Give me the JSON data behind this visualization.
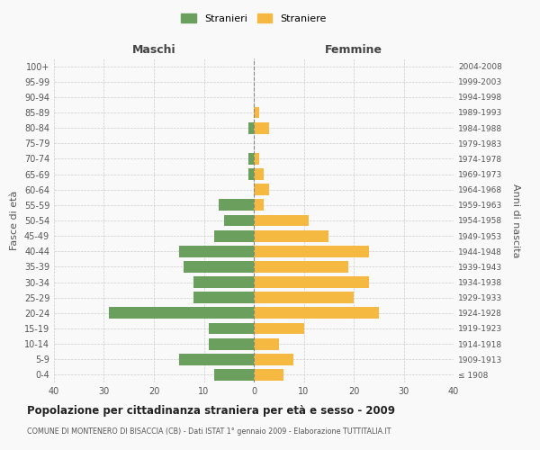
{
  "age_groups": [
    "100+",
    "95-99",
    "90-94",
    "85-89",
    "80-84",
    "75-79",
    "70-74",
    "65-69",
    "60-64",
    "55-59",
    "50-54",
    "45-49",
    "40-44",
    "35-39",
    "30-34",
    "25-29",
    "20-24",
    "15-19",
    "10-14",
    "5-9",
    "0-4"
  ],
  "birth_years": [
    "≤ 1908",
    "1909-1913",
    "1914-1918",
    "1919-1923",
    "1924-1928",
    "1929-1933",
    "1934-1938",
    "1939-1943",
    "1944-1948",
    "1949-1953",
    "1954-1958",
    "1959-1963",
    "1964-1968",
    "1969-1973",
    "1974-1978",
    "1979-1983",
    "1984-1988",
    "1989-1993",
    "1994-1998",
    "1999-2003",
    "2004-2008"
  ],
  "males": [
    0,
    0,
    0,
    0,
    1,
    0,
    1,
    1,
    0,
    7,
    6,
    8,
    15,
    14,
    12,
    12,
    29,
    9,
    9,
    15,
    8
  ],
  "females": [
    0,
    0,
    0,
    1,
    3,
    0,
    1,
    2,
    3,
    2,
    11,
    15,
    23,
    19,
    23,
    20,
    25,
    10,
    5,
    8,
    6
  ],
  "male_color": "#6a9f5e",
  "female_color": "#f5b942",
  "background_color": "#f9f9f9",
  "grid_color": "#cccccc",
  "title": "Popolazione per cittadinanza straniera per età e sesso - 2009",
  "subtitle": "COMUNE DI MONTENERO DI BISACCIA (CB) - Dati ISTAT 1° gennaio 2009 - Elaborazione TUTTITALIA.IT",
  "xlabel_left": "Maschi",
  "xlabel_right": "Femmine",
  "ylabel_left": "Fasce di età",
  "ylabel_right": "Anni di nascita",
  "legend_male": "Stranieri",
  "legend_female": "Straniere",
  "xlim": 40,
  "bar_height": 0.75
}
